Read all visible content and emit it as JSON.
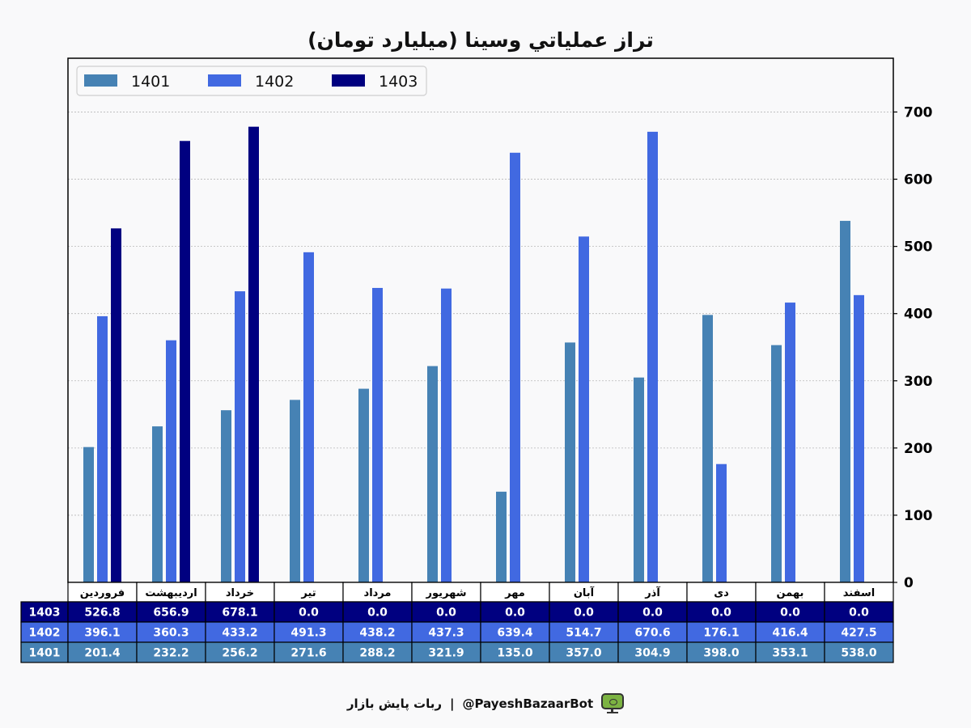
{
  "chart_data": {
    "type": "bar",
    "title": "تراز عملیاتي وسینا (میلیارد تومان)",
    "categories": [
      "فروردین",
      "اردیبهشت",
      "خرداد",
      "تیر",
      "مرداد",
      "شهریور",
      "مهر",
      "آبان",
      "آذر",
      "دی",
      "بهمن",
      "اسفند"
    ],
    "series": [
      {
        "name": "1401",
        "color": "#4682b4",
        "values": [
          201.4,
          232.2,
          256.2,
          271.6,
          288.2,
          321.9,
          135.0,
          357.0,
          304.9,
          398.0,
          353.1,
          538.0
        ]
      },
      {
        "name": "1402",
        "color": "#4169e1",
        "values": [
          396.1,
          360.3,
          433.2,
          491.3,
          438.2,
          437.3,
          639.4,
          514.7,
          670.6,
          176.1,
          416.4,
          427.5
        ]
      },
      {
        "name": "1403",
        "color": "#000080",
        "values": [
          526.8,
          656.9,
          678.1,
          0.0,
          0.0,
          0.0,
          0.0,
          0.0,
          0.0,
          0.0,
          0.0,
          0.0
        ]
      }
    ],
    "ylim": [
      0,
      780
    ],
    "yticks": [
      0,
      100,
      200,
      300,
      400,
      500,
      600,
      700
    ],
    "y_axis_side": "right",
    "grid": "horizontal dotted",
    "legend_position": "top-left",
    "table": {
      "row_order": [
        "1403",
        "1402",
        "1401"
      ],
      "cells": {
        "1403": [
          "526.8",
          "656.9",
          "678.1",
          "0.0",
          "0.0",
          "0.0",
          "0.0",
          "0.0",
          "0.0",
          "0.0",
          "0.0",
          "0.0"
        ],
        "1402": [
          "396.1",
          "360.3",
          "433.2",
          "491.3",
          "438.2",
          "437.3",
          "639.4",
          "514.7",
          "670.6",
          "176.1",
          "416.4",
          "427.5"
        ],
        "1401": [
          "201.4",
          "232.2",
          "256.2",
          "271.6",
          "288.2",
          "321.9",
          "135.0",
          "357.0",
          "304.9",
          "398.0",
          "353.1",
          "538.0"
        ]
      }
    }
  },
  "footer": {
    "bot_name": "ربات پایش بازار",
    "separator": "|",
    "handle": "@PayeshBazaarBot",
    "icon": "monitor-eye-icon"
  }
}
